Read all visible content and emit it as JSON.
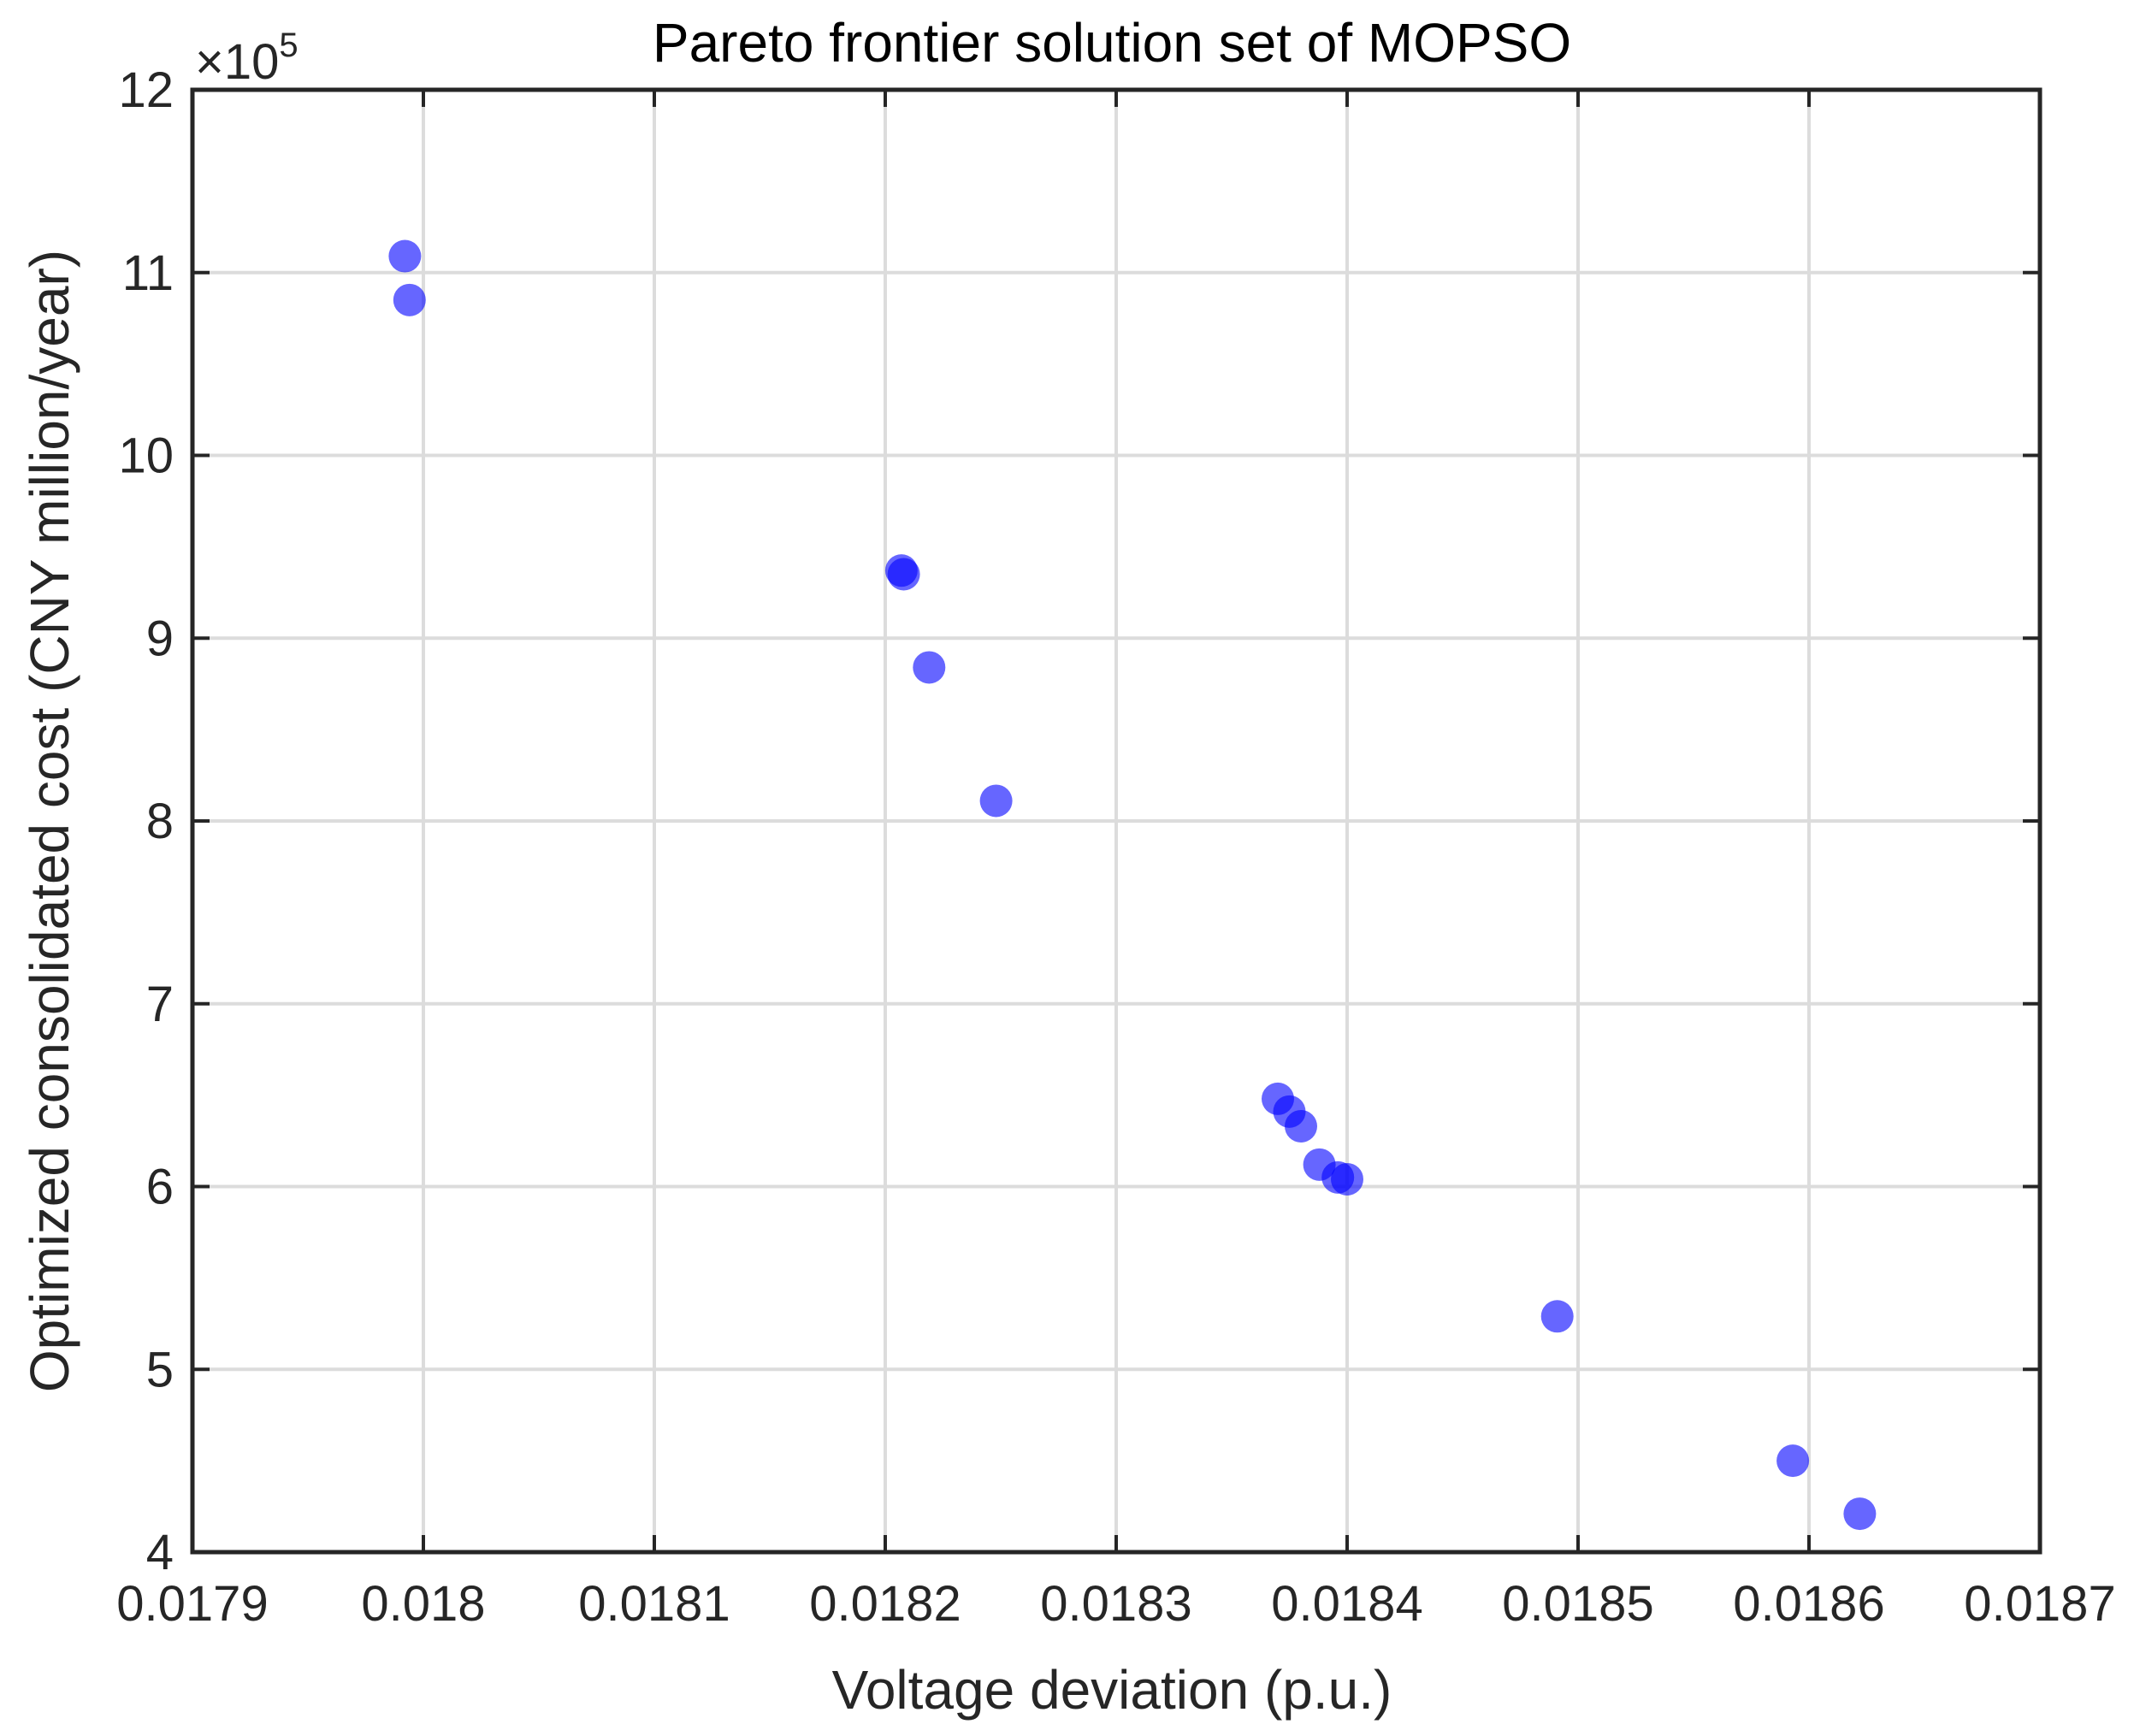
{
  "chart_data": {
    "type": "scatter",
    "title": "Pareto frontier solution set of MOPSO",
    "xlabel": "Voltage deviation (p.u.)",
    "ylabel": "Optimized consolidated cost (CNY million/year)",
    "y_exponent_label": "×10",
    "y_exponent_power": "5",
    "xlim": [
      0.0179,
      0.0187
    ],
    "ylim": [
      4,
      12
    ],
    "y_scale_factor": 100000,
    "xticks": [
      0.0179,
      0.018,
      0.0181,
      0.0182,
      0.0183,
      0.0184,
      0.0185,
      0.0186,
      0.0187
    ],
    "xtick_labels": [
      "0.0179",
      "0.018",
      "0.0181",
      "0.0182",
      "0.0183",
      "0.0184",
      "0.0185",
      "0.0186",
      "0.0187"
    ],
    "yticks": [
      4,
      5,
      6,
      7,
      8,
      9,
      10,
      11,
      12
    ],
    "ytick_labels": [
      "4",
      "5",
      "6",
      "7",
      "8",
      "9",
      "10",
      "11",
      "12"
    ],
    "grid": true,
    "marker_color": "#0000FF",
    "marker_opacity": 0.6,
    "series": [
      {
        "x": [
          0.017992,
          0.017994,
          0.018207,
          0.018208,
          0.018219,
          0.018248,
          0.01837,
          0.018375,
          0.01838,
          0.018388,
          0.018396,
          0.0184,
          0.018491,
          0.018593,
          0.018622
        ],
        "y": [
          11.09,
          10.85,
          9.37,
          9.35,
          8.84,
          8.11,
          6.48,
          6.41,
          6.33,
          6.12,
          6.05,
          6.04,
          5.29,
          4.5,
          4.21
        ]
      }
    ]
  }
}
